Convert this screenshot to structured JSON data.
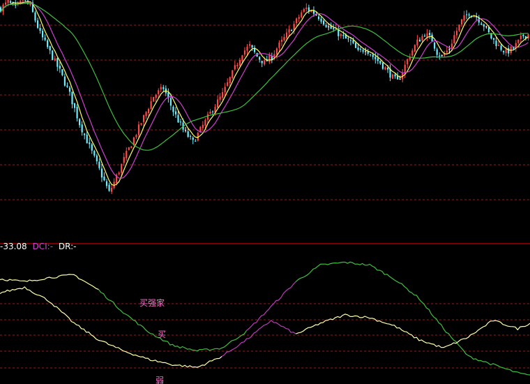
{
  "colors": {
    "background": "#000000",
    "grid": "#8a2020",
    "separator": "#c00000",
    "candle_up": "#ff4a4a",
    "candle_down": "#6cf0ff",
    "candle_flat": "#ffffff",
    "ma_short": "#ffff66",
    "ma_mid": "#d040d0",
    "ma_long": "#3fbf3f",
    "dci_line": "#b83cb8",
    "dr_line": "#ffffaa",
    "slow_line": "#3fbf3f",
    "label_pink": "#ff6fcf"
  },
  "indicator_legend": {
    "first_value": "-33.08",
    "dci_label": "DCI:",
    "dci_value": "-",
    "dr_label": "DR:",
    "dr_value": "-",
    "first_value_color": "#ffffff",
    "dci_color": "#d040d0",
    "dr_color": "#ffffff"
  },
  "zone_labels": [
    "买强家",
    "买",
    "弱"
  ],
  "chart_data": [
    {
      "type": "candlestick",
      "title": "",
      "grid": true,
      "moving_averages": [
        "short",
        "mid",
        "long"
      ],
      "price_path": [
        [
          0,
          96
        ],
        [
          3,
          99
        ],
        [
          6,
          96
        ],
        [
          9,
          100
        ],
        [
          12,
          97
        ],
        [
          16,
          84
        ],
        [
          20,
          75
        ],
        [
          24,
          66
        ],
        [
          28,
          55
        ],
        [
          32,
          41
        ],
        [
          36,
          30
        ],
        [
          40,
          19
        ],
        [
          44,
          8
        ],
        [
          46,
          13
        ],
        [
          50,
          24
        ],
        [
          54,
          34
        ],
        [
          58,
          44
        ],
        [
          62,
          54
        ],
        [
          66,
          58
        ],
        [
          70,
          47
        ],
        [
          74,
          38
        ],
        [
          78,
          32
        ],
        [
          82,
          40
        ],
        [
          86,
          48
        ],
        [
          90,
          55
        ],
        [
          94,
          65
        ],
        [
          98,
          75
        ],
        [
          101,
          78
        ],
        [
          104,
          73
        ],
        [
          107,
          70
        ],
        [
          110,
          73
        ],
        [
          112,
          77
        ],
        [
          114,
          80
        ],
        [
          117,
          85
        ],
        [
          120,
          90
        ],
        [
          122,
          94
        ],
        [
          124,
          96
        ],
        [
          127,
          94
        ],
        [
          130,
          91
        ],
        [
          133,
          87
        ],
        [
          136,
          85
        ],
        [
          139,
          82
        ],
        [
          142,
          80
        ],
        [
          145,
          75
        ],
        [
          148,
          77
        ],
        [
          151,
          73
        ],
        [
          154,
          70
        ],
        [
          157,
          66
        ],
        [
          159,
          63
        ],
        [
          161,
          61
        ],
        [
          163,
          66
        ],
        [
          166,
          74
        ],
        [
          169,
          80
        ],
        [
          172,
          84
        ],
        [
          175,
          81
        ],
        [
          177,
          75
        ],
        [
          179,
          73
        ],
        [
          182,
          77
        ],
        [
          184,
          83
        ],
        [
          187,
          90
        ],
        [
          190,
          94
        ],
        [
          193,
          92
        ],
        [
          196,
          88
        ],
        [
          199,
          82
        ],
        [
          202,
          78
        ],
        [
          205,
          75
        ],
        [
          208,
          77
        ],
        [
          212,
          83
        ],
        [
          215,
          84
        ]
      ]
    },
    {
      "type": "line",
      "title": "",
      "grid": true,
      "series": [
        {
          "values": [
            [
              0,
              46
            ],
            [
              10,
              44
            ],
            [
              20,
              47
            ],
            [
              30,
              49
            ],
            [
              40,
              38
            ],
            [
              50,
              22
            ],
            [
              60,
              8
            ],
            [
              70,
              -2
            ],
            [
              80,
              -6
            ],
            [
              90,
              -4
            ],
            [
              100,
              8
            ],
            [
              110,
              26
            ],
            [
              120,
              44
            ],
            [
              130,
              56
            ],
            [
              140,
              58
            ],
            [
              150,
              56
            ],
            [
              160,
              46
            ],
            [
              170,
              32
            ],
            [
              180,
              10
            ],
            [
              190,
              -10
            ],
            [
              200,
              -16
            ],
            [
              210,
              -22
            ],
            [
              215,
              -24
            ]
          ]
        },
        {
          "values": [
            [
              0,
              36
            ],
            [
              10,
              40
            ],
            [
              20,
              30
            ],
            [
              30,
              14
            ],
            [
              40,
              2
            ],
            [
              50,
              -6
            ],
            [
              60,
              -12
            ],
            [
              70,
              -16
            ],
            [
              80,
              -18
            ],
            [
              90,
              -10
            ],
            [
              100,
              2
            ],
            [
              110,
              16
            ],
            [
              120,
              6
            ],
            [
              130,
              14
            ],
            [
              140,
              20
            ],
            [
              150,
              18
            ],
            [
              160,
              12
            ],
            [
              170,
              2
            ],
            [
              180,
              -4
            ],
            [
              190,
              4
            ],
            [
              200,
              16
            ],
            [
              210,
              10
            ],
            [
              215,
              14
            ]
          ]
        }
      ]
    }
  ]
}
